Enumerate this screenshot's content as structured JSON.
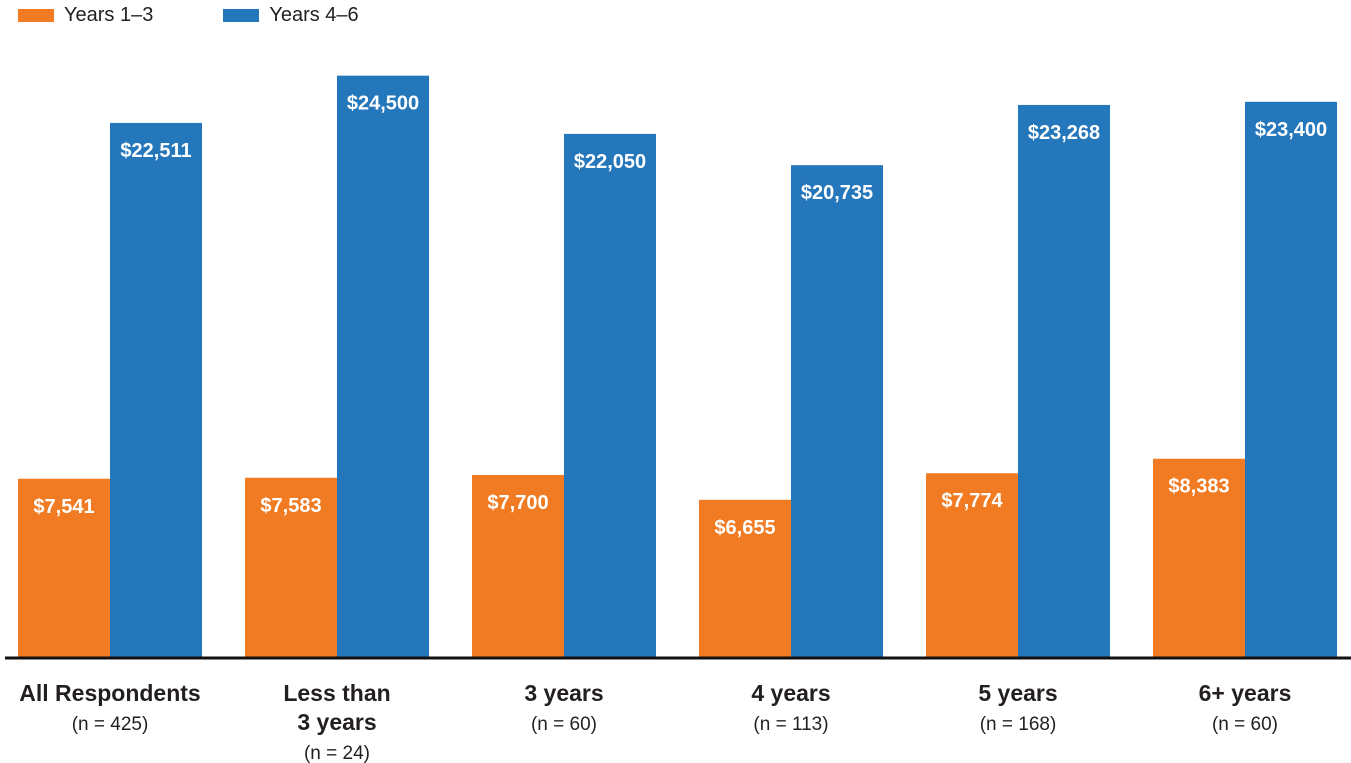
{
  "chart_data": {
    "type": "bar",
    "categories": [
      {
        "label": "All Respondents",
        "n": "(n = 425)"
      },
      {
        "label": "Less than 3 years",
        "n": "(n = 24)"
      },
      {
        "label": "3 years",
        "n": "(n = 60)"
      },
      {
        "label": "4 years",
        "n": "(n = 113)"
      },
      {
        "label": "5 years",
        "n": "(n = 168)"
      },
      {
        "label": "6+ years",
        "n": "(n = 60)"
      }
    ],
    "series": [
      {
        "name": "Years 1–3",
        "color": "#f07b22",
        "values": [
          7541,
          7583,
          7700,
          6655,
          7774,
          8383
        ],
        "labels": [
          "$7,541",
          "$7,583",
          "$7,700",
          "$6,655",
          "$7,774",
          "$8,383"
        ]
      },
      {
        "name": "Years 4–6",
        "color": "#2577bc",
        "values": [
          22511,
          24500,
          22050,
          20735,
          23268,
          23400
        ],
        "labels": [
          "$22,511",
          "$24,500",
          "$22,050",
          "$20,735",
          "$23,268",
          "$23,400"
        ]
      }
    ],
    "ylim": [
      0,
      26000
    ],
    "grid": false,
    "legend_position": "top-left",
    "title": "",
    "xlabel": "",
    "ylabel": ""
  }
}
